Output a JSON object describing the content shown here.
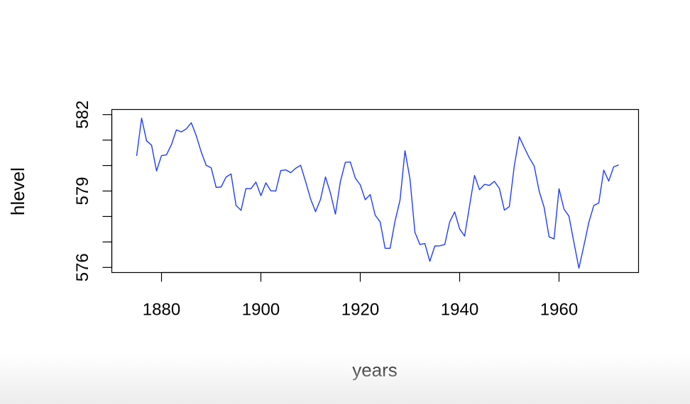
{
  "chart_data": {
    "type": "line",
    "xlabel": "years",
    "ylabel": "hlevel",
    "xlim": [
      1870,
      1976
    ],
    "ylim": [
      575.8,
      582.2
    ],
    "x_ticks": [
      "1880",
      "1900",
      "1920",
      "1940",
      "1960"
    ],
    "x_tick_values": [
      1880,
      1900,
      1920,
      1940,
      1960
    ],
    "y_tick_values": [
      576,
      577,
      578,
      579,
      580,
      581,
      582
    ],
    "y_tick_labels": [
      "576",
      "",
      "",
      "579",
      "",
      "",
      "582"
    ],
    "line_color": "#1f3cff",
    "series": [
      {
        "x": [
          1875,
          1876,
          1877,
          1878,
          1879,
          1880,
          1881,
          1882,
          1883,
          1884,
          1885,
          1886,
          1887,
          1888,
          1889,
          1890,
          1891,
          1892,
          1893,
          1894,
          1895,
          1896,
          1897,
          1898,
          1899,
          1900,
          1901,
          1902,
          1903,
          1904,
          1905,
          1906,
          1907,
          1908,
          1909,
          1910,
          1911,
          1912,
          1913,
          1914,
          1915,
          1916,
          1917,
          1918,
          1919,
          1920,
          1921,
          1922,
          1923,
          1924,
          1925,
          1926,
          1927,
          1928,
          1929,
          1930,
          1931,
          1932,
          1933,
          1934,
          1935,
          1936,
          1937,
          1938,
          1939,
          1940,
          1941,
          1942,
          1943,
          1944,
          1945,
          1946,
          1947,
          1948,
          1949,
          1950,
          1951,
          1952,
          1953,
          1954,
          1955,
          1956,
          1957,
          1958,
          1959,
          1960,
          1961,
          1962,
          1963,
          1964,
          1965,
          1966,
          1967,
          1968,
          1969,
          1970,
          1971,
          1972
        ],
        "values": [
          580.38,
          581.86,
          580.97,
          580.8,
          579.79,
          580.39,
          580.42,
          580.82,
          581.4,
          581.32,
          581.44,
          581.68,
          581.17,
          580.53,
          580.01,
          579.91,
          579.14,
          579.16,
          579.55,
          579.67,
          578.44,
          578.24,
          579.1,
          579.09,
          579.35,
          578.82,
          579.32,
          579.01,
          579.0,
          579.8,
          579.83,
          579.72,
          579.89,
          580.01,
          579.37,
          578.69,
          578.19,
          578.67,
          579.55,
          578.92,
          578.09,
          579.37,
          580.13,
          580.14,
          579.51,
          579.24,
          578.66,
          578.86,
          578.05,
          577.79,
          576.75,
          576.75,
          577.82,
          578.64,
          580.58,
          579.48,
          577.38,
          576.9,
          576.94,
          576.24,
          576.84,
          576.85,
          576.9,
          577.79,
          578.18,
          577.51,
          577.23,
          578.42,
          579.61,
          579.05,
          579.26,
          579.22,
          579.38,
          579.1,
          578.25,
          578.39,
          579.99,
          581.13,
          580.71,
          580.31,
          579.98,
          579.0,
          578.36,
          577.2,
          577.12,
          579.09,
          578.29,
          578.01,
          576.98,
          575.97,
          576.85,
          577.77,
          578.43,
          578.53,
          579.82,
          579.39,
          579.95,
          580.02
        ]
      }
    ]
  }
}
